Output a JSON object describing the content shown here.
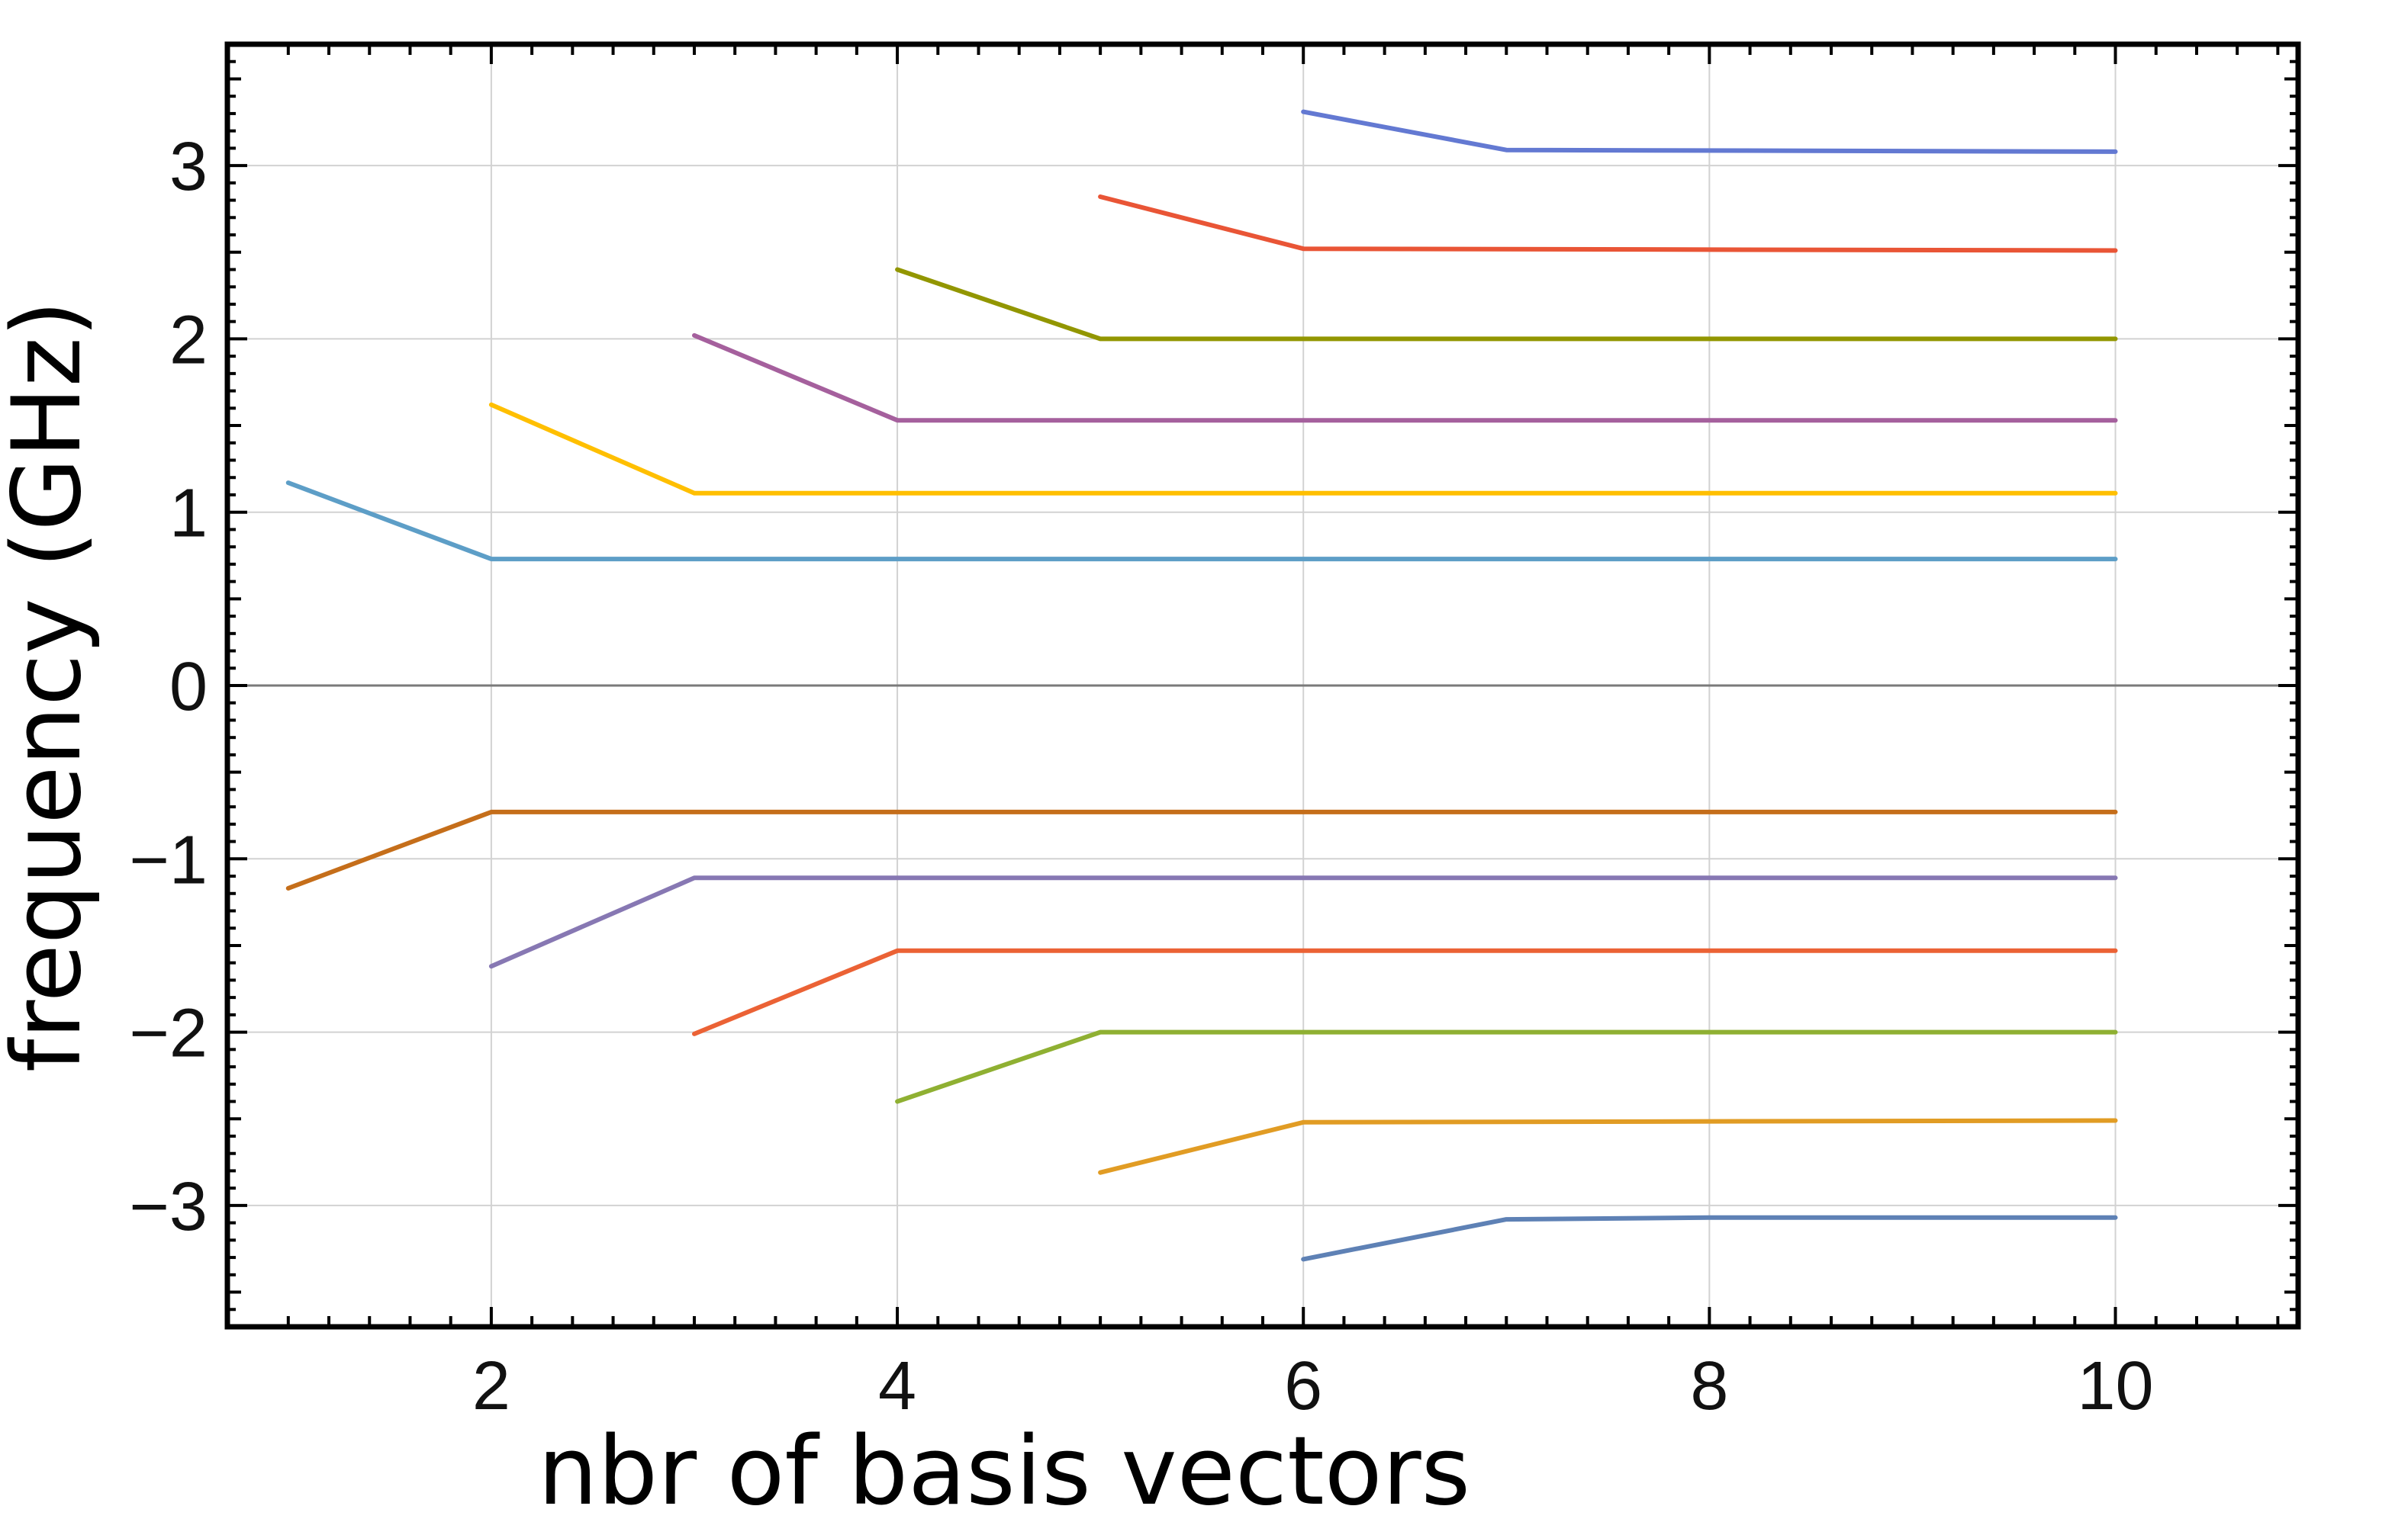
{
  "chart_data": {
    "type": "line",
    "title": "",
    "xlabel": "nbr of basis vectors",
    "ylabel": "frequency (GHz)",
    "xlim": [
      0.7,
      10.9
    ],
    "ylim": [
      -3.7,
      3.7
    ],
    "x_ticks": [
      2,
      4,
      6,
      8,
      10
    ],
    "y_ticks": [
      -3,
      -2,
      -1,
      0,
      1,
      2,
      3
    ],
    "y_tick_labels": [
      "−3",
      "−2",
      "−1",
      "0",
      "1",
      "2",
      "3"
    ],
    "grid": true,
    "series": [
      {
        "color": "#5e81b5",
        "points": [
          [
            6,
            -3.31
          ],
          [
            7,
            -3.08
          ],
          [
            8,
            -3.07
          ],
          [
            10,
            -3.07
          ]
        ]
      },
      {
        "color": "#e19c24",
        "points": [
          [
            5,
            -2.81
          ],
          [
            6,
            -2.52
          ],
          [
            10,
            -2.51
          ]
        ]
      },
      {
        "color": "#8fb032",
        "points": [
          [
            4,
            -2.4
          ],
          [
            5,
            -2.0
          ],
          [
            10,
            -2.0
          ]
        ]
      },
      {
        "color": "#eb6235",
        "points": [
          [
            3,
            -2.01
          ],
          [
            4,
            -1.53
          ],
          [
            10,
            -1.53
          ]
        ]
      },
      {
        "color": "#8778b3",
        "points": [
          [
            2,
            -1.62
          ],
          [
            3,
            -1.11
          ],
          [
            10,
            -1.11
          ]
        ]
      },
      {
        "color": "#c56e1a",
        "points": [
          [
            1,
            -1.17
          ],
          [
            2,
            -0.73
          ],
          [
            10,
            -0.73
          ]
        ]
      },
      {
        "color": "#5d9ec7",
        "points": [
          [
            1,
            1.17
          ],
          [
            2,
            0.73
          ],
          [
            10,
            0.73
          ]
        ]
      },
      {
        "color": "#ffbf00",
        "points": [
          [
            2,
            1.62
          ],
          [
            3,
            1.11
          ],
          [
            10,
            1.11
          ]
        ]
      },
      {
        "color": "#a5609d",
        "points": [
          [
            3,
            2.02
          ],
          [
            4,
            1.53
          ],
          [
            10,
            1.53
          ]
        ]
      },
      {
        "color": "#929600",
        "points": [
          [
            4,
            2.4
          ],
          [
            5,
            2.0
          ],
          [
            10,
            2.0
          ]
        ]
      },
      {
        "color": "#e95536",
        "points": [
          [
            5,
            2.82
          ],
          [
            6,
            2.52
          ],
          [
            10,
            2.51
          ]
        ]
      },
      {
        "color": "#6379d2",
        "points": [
          [
            6,
            3.31
          ],
          [
            7,
            3.09
          ],
          [
            10,
            3.08
          ]
        ]
      }
    ]
  }
}
